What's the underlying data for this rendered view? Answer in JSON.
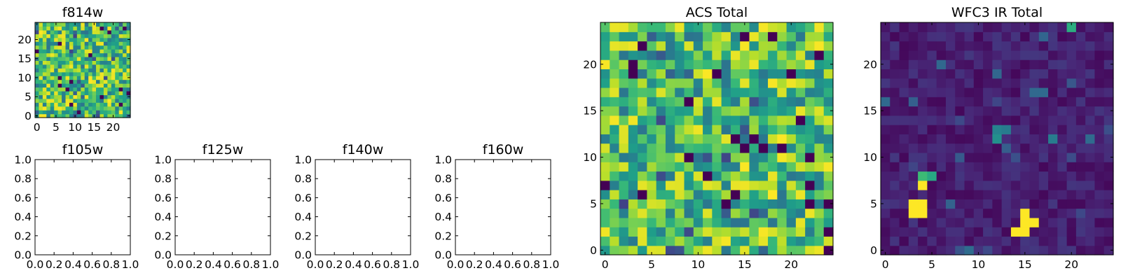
{
  "chart_data": [
    {
      "id": "f814w",
      "type": "heatmap",
      "title": "f814w",
      "grid_size": 25,
      "colormap": "viridis",
      "seed": 11,
      "profile": "uniform",
      "xlim": [
        -0.5,
        24.5
      ],
      "ylim": [
        -0.5,
        24.5
      ],
      "xticks": [
        "0",
        "5",
        "10",
        "15",
        "20"
      ],
      "yticks": [
        "0",
        "5",
        "10",
        "15",
        "20"
      ]
    },
    {
      "id": "f105w",
      "type": "empty",
      "title": "f105w",
      "xlim": [
        0,
        1
      ],
      "ylim": [
        0,
        1
      ],
      "xticks": [
        "0.0",
        "0.2",
        "0.4",
        "0.6",
        "0.8",
        "1.0"
      ],
      "yticks": [
        "0.0",
        "0.2",
        "0.4",
        "0.6",
        "0.8",
        "1.0"
      ]
    },
    {
      "id": "f125w",
      "type": "empty",
      "title": "f125w",
      "xlim": [
        0,
        1
      ],
      "ylim": [
        0,
        1
      ],
      "xticks": [
        "0.0",
        "0.2",
        "0.4",
        "0.6",
        "0.8",
        "1.0"
      ],
      "yticks": [
        "0.0",
        "0.2",
        "0.4",
        "0.6",
        "0.8",
        "1.0"
      ]
    },
    {
      "id": "f140w",
      "type": "empty",
      "title": "f140w",
      "xlim": [
        0,
        1
      ],
      "ylim": [
        0,
        1
      ],
      "xticks": [
        "0.0",
        "0.2",
        "0.4",
        "0.6",
        "0.8",
        "1.0"
      ],
      "yticks": [
        "0.0",
        "0.2",
        "0.4",
        "0.6",
        "0.8",
        "1.0"
      ]
    },
    {
      "id": "f160w",
      "type": "empty",
      "title": "f160w",
      "xlim": [
        0,
        1
      ],
      "ylim": [
        0,
        1
      ],
      "xticks": [
        "0.0",
        "0.2",
        "0.4",
        "0.6",
        "0.8",
        "1.0"
      ],
      "yticks": [
        "0.0",
        "0.2",
        "0.4",
        "0.6",
        "0.8",
        "1.0"
      ]
    },
    {
      "id": "acs-total",
      "type": "heatmap",
      "title": "ACS Total",
      "grid_size": 25,
      "colormap": "viridis",
      "seed": 29,
      "profile": "uniform",
      "xlim": [
        -0.5,
        24.5
      ],
      "ylim": [
        -0.5,
        24.5
      ],
      "xticks": [
        "0",
        "5",
        "10",
        "15",
        "20"
      ],
      "yticks": [
        "0",
        "5",
        "10",
        "15",
        "20"
      ]
    },
    {
      "id": "wfc3-ir-total",
      "type": "heatmap",
      "title": "WFC3 IR Total",
      "grid_size": 25,
      "colormap": "viridis",
      "seed": 47,
      "profile": "low",
      "bright_pixels": [
        {
          "x": 3,
          "y": 4,
          "v": 1.0
        },
        {
          "x": 3,
          "y": 5,
          "v": 1.0
        },
        {
          "x": 4,
          "y": 4,
          "v": 1.0
        },
        {
          "x": 4,
          "y": 5,
          "v": 1.0
        },
        {
          "x": 4,
          "y": 7,
          "v": 1.0
        },
        {
          "x": 4,
          "y": 8,
          "v": 0.68
        },
        {
          "x": 5,
          "y": 8,
          "v": 0.6
        },
        {
          "x": 14,
          "y": 2,
          "v": 1.0
        },
        {
          "x": 15,
          "y": 2,
          "v": 1.0
        },
        {
          "x": 15,
          "y": 3,
          "v": 1.0
        },
        {
          "x": 16,
          "y": 3,
          "v": 1.0
        },
        {
          "x": 15,
          "y": 4,
          "v": 1.0
        },
        {
          "x": 12,
          "y": 12,
          "v": 0.5
        },
        {
          "x": 12,
          "y": 13,
          "v": 0.45
        },
        {
          "x": 13,
          "y": 13,
          "v": 0.42
        },
        {
          "x": 18,
          "y": 12,
          "v": 0.42
        },
        {
          "x": 20,
          "y": 24,
          "v": 0.62
        }
      ],
      "xlim": [
        -0.5,
        24.5
      ],
      "ylim": [
        -0.5,
        24.5
      ],
      "xticks": [
        "0",
        "5",
        "10",
        "15",
        "20"
      ],
      "yticks": [
        "0",
        "5",
        "10",
        "15",
        "20"
      ]
    }
  ]
}
